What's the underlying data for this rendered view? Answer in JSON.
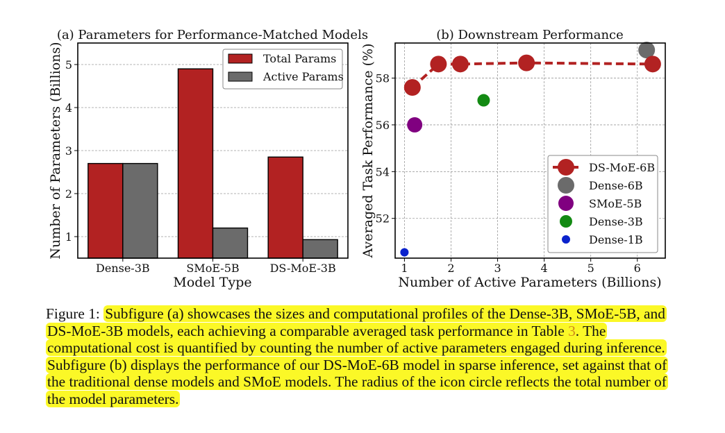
{
  "charts": {
    "a": {
      "title": "(a) Parameters for Performance-Matched Models",
      "xlabel": "Model Type",
      "ylabel": "Number of Parameters (Billions)",
      "legend": [
        "Total Params",
        "Active Params"
      ]
    },
    "b": {
      "title": "(b) Downstream Performance",
      "xlabel": "Number of Active Parameters (Billions)",
      "ylabel": "Averaged Task Performance (%)",
      "legend": [
        "DS-MoE-6B",
        "Dense-6B",
        "SMoE-5B",
        "Dense-3B",
        "Dense-1B"
      ]
    }
  },
  "chart_data": [
    {
      "type": "bar",
      "title": "(a) Parameters for Performance-Matched Models",
      "xlabel": "Model Type",
      "ylabel": "Number of Parameters (Billions)",
      "categories": [
        "Dense-3B",
        "SMoE-5B",
        "DS-MoE-3B"
      ],
      "series": [
        {
          "name": "Total Params",
          "values": [
            2.7,
            4.9,
            2.85
          ],
          "color": "#b22222"
        },
        {
          "name": "Active Params",
          "values": [
            2.7,
            1.2,
            0.93
          ],
          "color": "#6b6b6b"
        }
      ],
      "ylim": [
        0.5,
        5.5
      ],
      "yticks": [
        1,
        2,
        3,
        4,
        5
      ],
      "grid": true,
      "legend_position": "top-right"
    },
    {
      "type": "scatter",
      "title": "(b) Downstream Performance",
      "xlabel": "Number of Active Parameters (Billions)",
      "ylabel": "Averaged Task Performance (%)",
      "xlim": [
        0.8,
        6.6
      ],
      "ylim": [
        50.3,
        59.5
      ],
      "xticks": [
        1,
        2,
        3,
        4,
        5,
        6
      ],
      "yticks": [
        52,
        54,
        56,
        58
      ],
      "grid": true,
      "legend_position": "lower-right",
      "series": [
        {
          "name": "DS-MoE-6B",
          "mode": "line+markers",
          "line_style": "dashed",
          "color": "#b22222",
          "x": [
            1.17,
            1.73,
            2.2,
            3.62,
            6.33
          ],
          "y": [
            57.6,
            58.6,
            58.6,
            58.65,
            58.6
          ],
          "marker_size": 12
        },
        {
          "name": "Dense-6B",
          "color": "#6b6b6b",
          "x": [
            6.2
          ],
          "y": [
            59.2
          ],
          "marker_size": 12
        },
        {
          "name": "SMoE-5B",
          "color": "#800080",
          "x": [
            1.22
          ],
          "y": [
            56.0
          ],
          "marker_size": 11
        },
        {
          "name": "Dense-3B",
          "color": "#138a13",
          "x": [
            2.7
          ],
          "y": [
            57.05
          ],
          "marker_size": 9
        },
        {
          "name": "Dense-1B",
          "color": "#0b22cc",
          "x": [
            1.0
          ],
          "y": [
            50.55
          ],
          "marker_size": 6
        }
      ]
    }
  ],
  "caption": {
    "label": "Figure 1:",
    "part1": "Subfigure (a) showcases the sizes and computational profiles of the Dense-3B, SMoE-5B, and DS-MoE-3B models, each achieving a comparable averaged task performance in Table",
    "ref": "3",
    "part2": ". The computational cost is quantified by counting the number of active parameters engaged during inference. Subfigure (b) displays the performance of our DS-MoE-6B model in sparse inference, set against that of the traditional dense models and SMoE models. The radius of the icon circle reflects the total number of the model parameters."
  }
}
